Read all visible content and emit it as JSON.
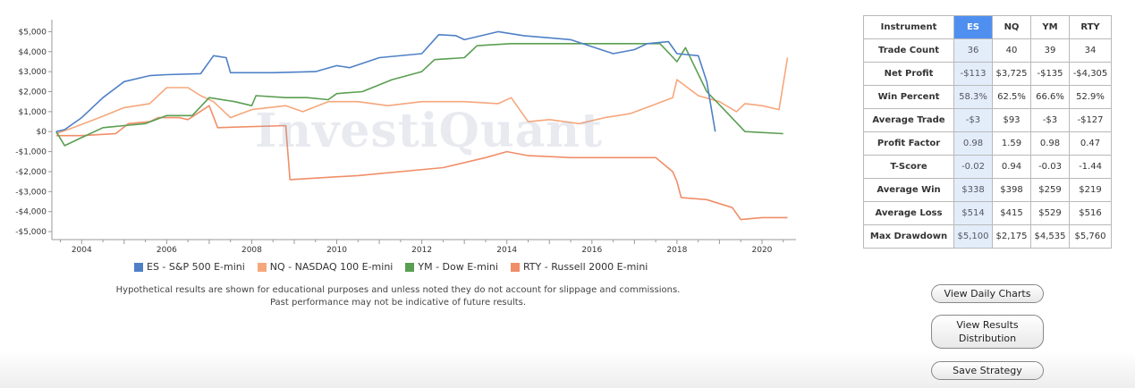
{
  "chart_data": {
    "type": "line",
    "title": "",
    "xlabel": "",
    "ylabel": "",
    "xlim": [
      2003.3,
      2020.8
    ],
    "ylim": [
      -5400,
      5600
    ],
    "x_ticks": [
      2004,
      2006,
      2008,
      2010,
      2012,
      2014,
      2016,
      2018,
      2020
    ],
    "y_ticks": [
      {
        "value": 5000,
        "label": "$5,000"
      },
      {
        "value": 4000,
        "label": "$4,000"
      },
      {
        "value": 3000,
        "label": "$3,000"
      },
      {
        "value": 2000,
        "label": "$2,000"
      },
      {
        "value": 1000,
        "label": "$1,000"
      },
      {
        "value": 0,
        "label": "$0"
      },
      {
        "value": -1000,
        "label": "-$1,000"
      },
      {
        "value": -2000,
        "label": "-$2,000"
      },
      {
        "value": -3000,
        "label": "-$3,000"
      },
      {
        "value": -4000,
        "label": "-$4,000"
      },
      {
        "value": -5000,
        "label": "-$5,000"
      }
    ],
    "grid": false,
    "legend_position": "bottom",
    "series": [
      {
        "name": "ES - S&P 500 E-mini",
        "color": "#4f80c6",
        "points": [
          [
            2003.4,
            0
          ],
          [
            2003.6,
            100
          ],
          [
            2004.0,
            700
          ],
          [
            2004.5,
            1700
          ],
          [
            2005.0,
            2500
          ],
          [
            2005.6,
            2800
          ],
          [
            2006.0,
            2850
          ],
          [
            2006.8,
            2900
          ],
          [
            2007.1,
            3800
          ],
          [
            2007.4,
            3700
          ],
          [
            2007.5,
            2950
          ],
          [
            2008.5,
            2950
          ],
          [
            2009.5,
            3000
          ],
          [
            2010.0,
            3300
          ],
          [
            2010.3,
            3200
          ],
          [
            2011.0,
            3700
          ],
          [
            2012.0,
            3900
          ],
          [
            2012.4,
            4850
          ],
          [
            2012.8,
            4800
          ],
          [
            2013.0,
            4600
          ],
          [
            2013.8,
            5000
          ],
          [
            2014.4,
            4800
          ],
          [
            2015.5,
            4600
          ],
          [
            2016.5,
            3900
          ],
          [
            2017.0,
            4100
          ],
          [
            2017.3,
            4400
          ],
          [
            2017.8,
            4500
          ],
          [
            2018.0,
            3900
          ],
          [
            2018.5,
            3800
          ],
          [
            2018.7,
            2500
          ],
          [
            2018.9,
            0
          ]
        ]
      },
      {
        "name": "NQ - NASDAQ 100 E-mini",
        "color": "#f5a77c",
        "points": [
          [
            2003.4,
            -100
          ],
          [
            2003.8,
            200
          ],
          [
            2004.3,
            600
          ],
          [
            2005.0,
            1200
          ],
          [
            2005.6,
            1400
          ],
          [
            2006.0,
            2200
          ],
          [
            2006.5,
            2200
          ],
          [
            2006.8,
            1800
          ],
          [
            2007.1,
            1500
          ],
          [
            2007.5,
            700
          ],
          [
            2008.0,
            1100
          ],
          [
            2008.8,
            1300
          ],
          [
            2009.2,
            1000
          ],
          [
            2009.8,
            1500
          ],
          [
            2010.5,
            1500
          ],
          [
            2011.2,
            1300
          ],
          [
            2012.0,
            1500
          ],
          [
            2013.0,
            1500
          ],
          [
            2013.8,
            1400
          ],
          [
            2014.1,
            1700
          ],
          [
            2014.5,
            500
          ],
          [
            2015.0,
            600
          ],
          [
            2015.7,
            400
          ],
          [
            2016.3,
            700
          ],
          [
            2016.9,
            900
          ],
          [
            2017.4,
            1300
          ],
          [
            2017.9,
            1700
          ],
          [
            2018.0,
            2600
          ],
          [
            2018.5,
            1800
          ],
          [
            2019.0,
            1500
          ],
          [
            2019.4,
            1000
          ],
          [
            2019.6,
            1400
          ],
          [
            2020.0,
            1300
          ],
          [
            2020.4,
            1100
          ],
          [
            2020.6,
            3700
          ]
        ]
      },
      {
        "name": "YM - Dow E-mini",
        "color": "#5a9e52",
        "points": [
          [
            2003.4,
            0
          ],
          [
            2003.6,
            -700
          ],
          [
            2004.0,
            -300
          ],
          [
            2004.5,
            200
          ],
          [
            2005.0,
            300
          ],
          [
            2005.5,
            400
          ],
          [
            2006.0,
            800
          ],
          [
            2006.6,
            800
          ],
          [
            2007.0,
            1700
          ],
          [
            2007.6,
            1500
          ],
          [
            2008.0,
            1300
          ],
          [
            2008.1,
            1800
          ],
          [
            2008.8,
            1700
          ],
          [
            2009.3,
            1700
          ],
          [
            2009.8,
            1600
          ],
          [
            2010.0,
            1900
          ],
          [
            2010.6,
            2000
          ],
          [
            2011.3,
            2600
          ],
          [
            2012.0,
            3000
          ],
          [
            2012.3,
            3600
          ],
          [
            2013.0,
            3700
          ],
          [
            2013.3,
            4300
          ],
          [
            2014.1,
            4400
          ],
          [
            2015.0,
            4400
          ],
          [
            2016.0,
            4400
          ],
          [
            2017.0,
            4400
          ],
          [
            2017.6,
            4400
          ],
          [
            2018.0,
            3500
          ],
          [
            2018.2,
            4200
          ],
          [
            2018.7,
            2000
          ],
          [
            2019.2,
            900
          ],
          [
            2019.6,
            0
          ],
          [
            2020.5,
            -100
          ]
        ]
      },
      {
        "name": "RTY - Russell 2000 E-mini",
        "color": "#f08e68",
        "points": [
          [
            2003.4,
            -200
          ],
          [
            2004.0,
            -200
          ],
          [
            2004.8,
            -100
          ],
          [
            2005.1,
            400
          ],
          [
            2005.6,
            500
          ],
          [
            2005.8,
            700
          ],
          [
            2006.3,
            700
          ],
          [
            2006.5,
            600
          ],
          [
            2007.0,
            1300
          ],
          [
            2007.2,
            200
          ],
          [
            2008.8,
            300
          ],
          [
            2008.9,
            -2400
          ],
          [
            2010.5,
            -2200
          ],
          [
            2012.5,
            -1800
          ],
          [
            2013.5,
            -1300
          ],
          [
            2014.0,
            -1000
          ],
          [
            2014.5,
            -1200
          ],
          [
            2015.5,
            -1300
          ],
          [
            2016.5,
            -1300
          ],
          [
            2017.5,
            -1300
          ],
          [
            2017.9,
            -2000
          ],
          [
            2018.0,
            -2500
          ],
          [
            2018.1,
            -3300
          ],
          [
            2018.7,
            -3400
          ],
          [
            2019.3,
            -3800
          ],
          [
            2019.5,
            -4400
          ],
          [
            2020.0,
            -4300
          ],
          [
            2020.6,
            -4300
          ]
        ]
      }
    ]
  },
  "watermark": "InvestiQuant",
  "disclaimer": {
    "line1": "Hypothetical results are shown for educational purposes and unless noted they do not account for slippage and commissions.",
    "line2": "Past performance may not be indicative of future results."
  },
  "table": {
    "headers": [
      "Instrument",
      "ES",
      "NQ",
      "YM",
      "RTY"
    ],
    "rows": [
      {
        "label": "Trade Count",
        "es": "36",
        "nq": "40",
        "ym": "39",
        "rty": "34"
      },
      {
        "label": "Net Profit",
        "es": "-$113",
        "nq": "$3,725",
        "ym": "-$135",
        "rty": "-$4,305"
      },
      {
        "label": "Win Percent",
        "es": "58.3%",
        "nq": "62.5%",
        "ym": "66.6%",
        "rty": "52.9%"
      },
      {
        "label": "Average Trade",
        "es": "-$3",
        "nq": "$93",
        "ym": "-$3",
        "rty": "-$127"
      },
      {
        "label": "Profit Factor",
        "es": "0.98",
        "nq": "1.59",
        "ym": "0.98",
        "rty": "0.47"
      },
      {
        "label": "T-Score",
        "es": "-0.02",
        "nq": "0.94",
        "ym": "-0.03",
        "rty": "-1.44"
      },
      {
        "label": "Average Win",
        "es": "$338",
        "nq": "$398",
        "ym": "$259",
        "rty": "$219"
      },
      {
        "label": "Average Loss",
        "es": "$514",
        "nq": "$415",
        "ym": "$529",
        "rty": "$516"
      },
      {
        "label": "Max Drawdown",
        "es": "$5,100",
        "nq": "$2,175",
        "ym": "$4,535",
        "rty": "$5,760"
      }
    ]
  },
  "buttons": {
    "daily": "View Daily Charts",
    "dist_line1": "View Results",
    "dist_line2": "Distribution",
    "save": "Save Strategy"
  }
}
